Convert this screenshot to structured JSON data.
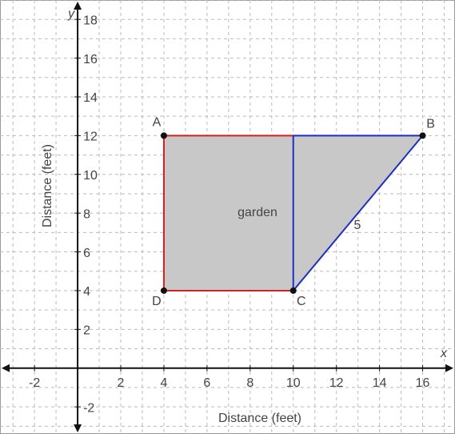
{
  "axes": {
    "xlim": [
      -3.6,
      17.5
    ],
    "ylim": [
      -3.4,
      19
    ],
    "xticks": [
      -2,
      2,
      4,
      6,
      8,
      10,
      12,
      14,
      16
    ],
    "yticks": [
      -2,
      2,
      4,
      6,
      8,
      10,
      12,
      14,
      16,
      18
    ],
    "x_label": "x",
    "y_label": "y",
    "x_title": "Distance (feet)",
    "y_title": "Distance (feet)",
    "grid": true
  },
  "shape": {
    "fill": "#c8c8c8",
    "vertices": [
      [
        4,
        12
      ],
      [
        16,
        12
      ],
      [
        10,
        4
      ],
      [
        4,
        4
      ]
    ]
  },
  "segments": [
    {
      "color": "#d42020",
      "from": [
        4,
        12
      ],
      "to": [
        10,
        12
      ]
    },
    {
      "color": "#d42020",
      "from": [
        4,
        12
      ],
      "to": [
        4,
        4
      ]
    },
    {
      "color": "#d42020",
      "from": [
        4,
        4
      ],
      "to": [
        10,
        4
      ]
    },
    {
      "color": "#1f2fbf",
      "from": [
        10,
        12
      ],
      "to": [
        16,
        12
      ]
    },
    {
      "color": "#1f2fbf",
      "from": [
        16,
        12
      ],
      "to": [
        10,
        4
      ]
    },
    {
      "color": "#1f2fbf",
      "from": [
        10,
        4
      ],
      "to": [
        10,
        12
      ]
    }
  ],
  "points": [
    {
      "label": "A",
      "x": 4,
      "y": 12
    },
    {
      "label": "B",
      "x": 16,
      "y": 12
    },
    {
      "label": "C",
      "x": 10,
      "y": 4
    },
    {
      "label": "D",
      "x": 4,
      "y": 4
    }
  ],
  "labels": {
    "region": "garden",
    "side": "5"
  }
}
